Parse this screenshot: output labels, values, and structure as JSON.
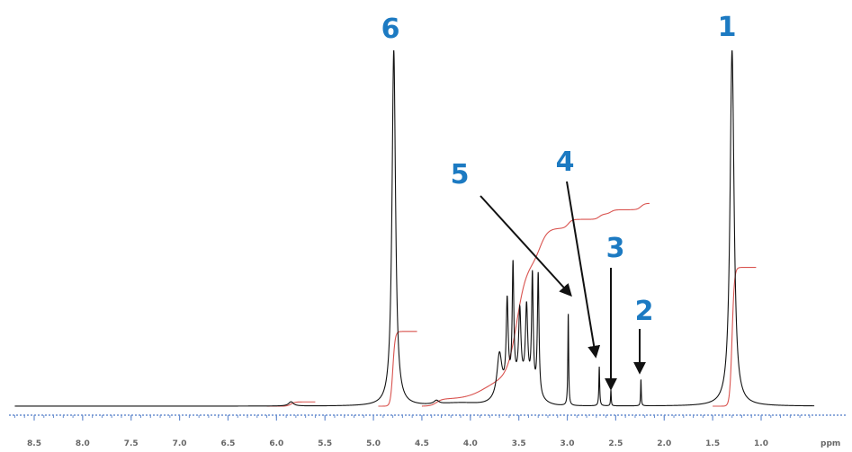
{
  "chart_data": {
    "type": "line",
    "title": "",
    "xlabel": "",
    "ylabel": "",
    "x_unit_label": "ppm",
    "xlim": [
      8.7,
      0.4
    ],
    "x_reversed": true,
    "ticks": [
      "8.5",
      "8.0",
      "7.5",
      "7.0",
      "6.5",
      "6.0",
      "5.5",
      "5.0",
      "4.5",
      "4.0",
      "3.5",
      "3.0",
      "2.5",
      "2.0",
      "1.5",
      "1.0"
    ],
    "tick_values": [
      8.5,
      8.0,
      7.5,
      7.0,
      6.5,
      6.0,
      5.5,
      5.0,
      4.5,
      4.0,
      3.5,
      3.0,
      2.5,
      2.0,
      1.5,
      1.0
    ],
    "series": [
      {
        "id": "spectrum",
        "color": "#111111"
      },
      {
        "id": "integral",
        "color": "#d9534f"
      }
    ],
    "peaks": [
      {
        "label": "1",
        "ppm": 1.3,
        "height": 1.0,
        "width": 0.025
      },
      {
        "label": "2",
        "ppm": 2.24,
        "height": 0.075,
        "width": 0.004
      },
      {
        "label": "3",
        "ppm": 2.55,
        "height": 0.045,
        "width": 0.004
      },
      {
        "label": "4",
        "ppm": 2.67,
        "height": 0.11,
        "width": 0.005
      },
      {
        "label": "5",
        "ppm": 2.99,
        "height": 0.26,
        "width": 0.005
      },
      {
        "label": "6",
        "ppm": 4.79,
        "height": 1.0,
        "width": 0.022
      }
    ],
    "multiplet": [
      {
        "ppm": 3.3,
        "height": 0.34,
        "width": 0.01
      },
      {
        "ppm": 3.36,
        "height": 0.32,
        "width": 0.01
      },
      {
        "ppm": 3.42,
        "height": 0.22,
        "width": 0.014
      },
      {
        "ppm": 3.49,
        "height": 0.2,
        "width": 0.014
      },
      {
        "ppm": 3.56,
        "height": 0.33,
        "width": 0.01
      },
      {
        "ppm": 3.62,
        "height": 0.24,
        "width": 0.012
      },
      {
        "ppm": 3.7,
        "height": 0.12,
        "width": 0.03
      }
    ],
    "minor_peaks": [
      {
        "ppm": 5.85,
        "height": 0.012,
        "width": 0.03
      },
      {
        "ppm": 4.35,
        "height": 0.01,
        "width": 0.03
      }
    ]
  },
  "annotations": [
    {
      "label": "1"
    },
    {
      "label": "2"
    },
    {
      "label": "3"
    },
    {
      "label": "4"
    },
    {
      "label": "5"
    },
    {
      "label": "6"
    }
  ]
}
